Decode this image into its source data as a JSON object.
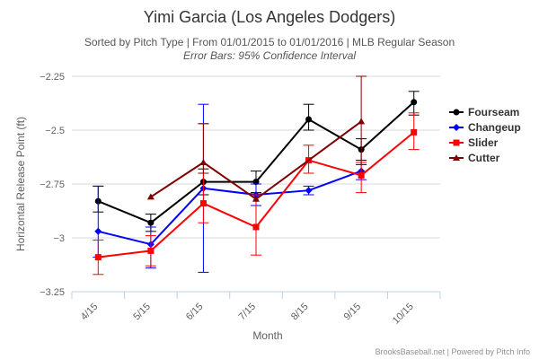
{
  "chart_data": {
    "type": "line",
    "title": "Yimi Garcia (Los Angeles Dodgers)",
    "subtitle_line1": "Sorted by Pitch Type | From 01/01/2015 to 01/01/2016 | MLB Regular Season",
    "subtitle_line2": "Error Bars: 95% Confidence Interval",
    "xlabel": "Month",
    "ylabel": "Horizontal Release Point (ft)",
    "categories": [
      "4/15",
      "5/15",
      "6/15",
      "7/15",
      "8/15",
      "9/15",
      "10/15"
    ],
    "ylim": [
      -3.25,
      -2.25
    ],
    "y_ticks": [
      -2.25,
      -2.5,
      -2.75,
      -3,
      -3.25
    ],
    "y_tick_labels": [
      "−2.25",
      "−2.5",
      "−2.75",
      "−3",
      "−3.25"
    ],
    "legend_position": "right",
    "series": [
      {
        "name": "Fourseam",
        "color": "#000000",
        "marker": "circle",
        "values": [
          -2.83,
          -2.93,
          -2.74,
          -2.74,
          -2.45,
          -2.59,
          -2.37
        ],
        "errors": [
          [
            -2.88,
            -2.76
          ],
          [
            -2.97,
            -2.89
          ],
          [
            -2.8,
            -2.68
          ],
          [
            -2.79,
            -2.69
          ],
          [
            -2.5,
            -2.38
          ],
          [
            -2.64,
            -2.54
          ],
          [
            -2.43,
            -2.32
          ]
        ]
      },
      {
        "name": "Changeup",
        "color": "#0000ff",
        "marker": "diamond",
        "values": [
          -2.97,
          -3.03,
          -2.77,
          -2.8,
          -2.78,
          -2.69,
          null
        ],
        "errors": [
          [
            -3.09,
            -2.76
          ],
          [
            -3.14,
            -2.95
          ],
          [
            -3.16,
            -2.38
          ],
          [
            -2.85,
            -2.75
          ],
          [
            -2.8,
            -2.76
          ],
          [
            -2.73,
            -2.66
          ],
          null
        ]
      },
      {
        "name": "Slider",
        "color": "#ff0000",
        "marker": "square",
        "values": [
          -3.09,
          -3.06,
          -2.84,
          -2.95,
          -2.64,
          -2.71,
          -2.51
        ],
        "errors": [
          [
            -3.17,
            -3.01
          ],
          [
            -3.13,
            -2.99
          ],
          [
            -2.93,
            -2.47
          ],
          [
            -3.08,
            -2.8
          ],
          [
            -2.7,
            -2.57
          ],
          [
            -2.79,
            -2.65
          ],
          [
            -2.59,
            -2.42
          ]
        ]
      },
      {
        "name": "Cutter",
        "color": "#800000",
        "marker": "triangle",
        "values": [
          null,
          -2.81,
          -2.65,
          -2.82,
          null,
          -2.46,
          null
        ],
        "errors": [
          null,
          null,
          [
            -2.7,
            -2.47
          ],
          null,
          null,
          [
            -2.66,
            -2.25
          ],
          null
        ]
      }
    ],
    "credits": "BrooksBaseball.net | Powered by Pitch Info"
  }
}
